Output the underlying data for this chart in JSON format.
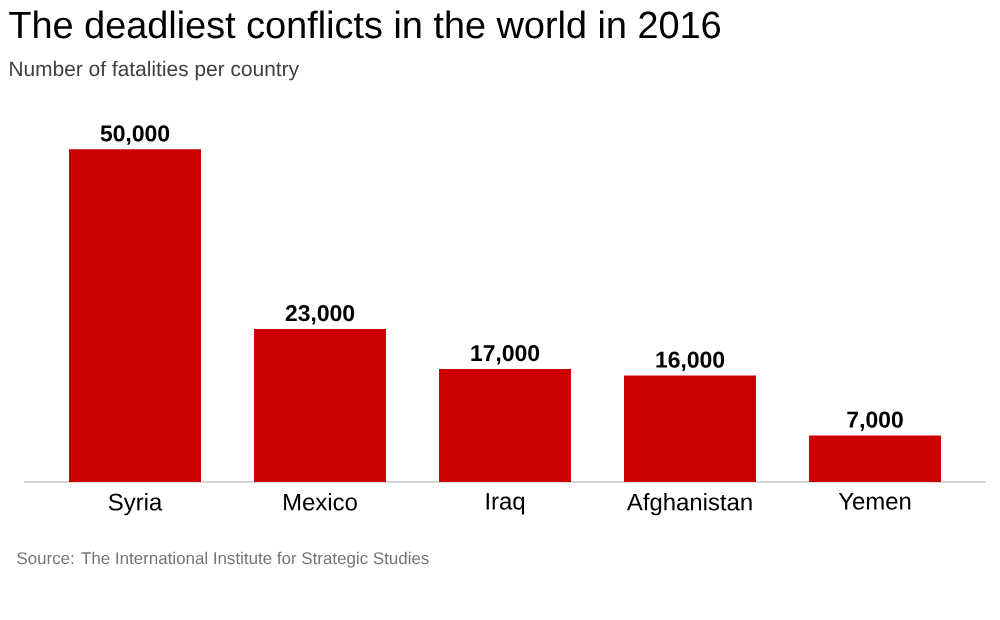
{
  "chart_data": {
    "type": "bar",
    "title": "The deadliest conflicts in the world in 2016",
    "subtitle": "Number of fatalities per country",
    "categories": [
      "Syria",
      "Mexico",
      "Iraq",
      "Afghanistan",
      "Yemen"
    ],
    "values": [
      50000,
      23000,
      17000,
      16000,
      7000
    ],
    "value_labels": [
      "50,000",
      "23,000",
      "17,000",
      "16,000",
      "7,000"
    ],
    "color": "#cc0000",
    "annotations": [
      "Source: The International Institute for Strategic Studies"
    ]
  }
}
